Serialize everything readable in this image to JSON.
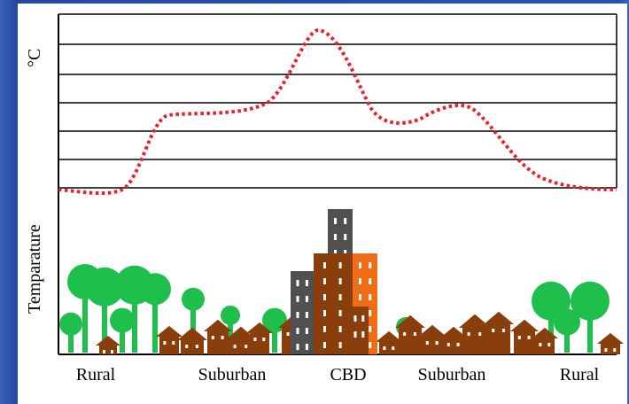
{
  "diagram": {
    "y_unit": "°C",
    "y_label": "Temparature",
    "zones": [
      "Rural",
      "Suburban",
      "CBD",
      "Suburban",
      "Rural"
    ],
    "colors": {
      "temperature_curve": "#e8202a",
      "gridline": "#000000",
      "tree": "#1fbf4c",
      "house": "#8a3e0c",
      "building_brown": "#8a3e0c",
      "building_orange": "#ee6d16",
      "building_gray": "#505050",
      "window": "#ffffff",
      "background": "#ffffff"
    }
  }
}
